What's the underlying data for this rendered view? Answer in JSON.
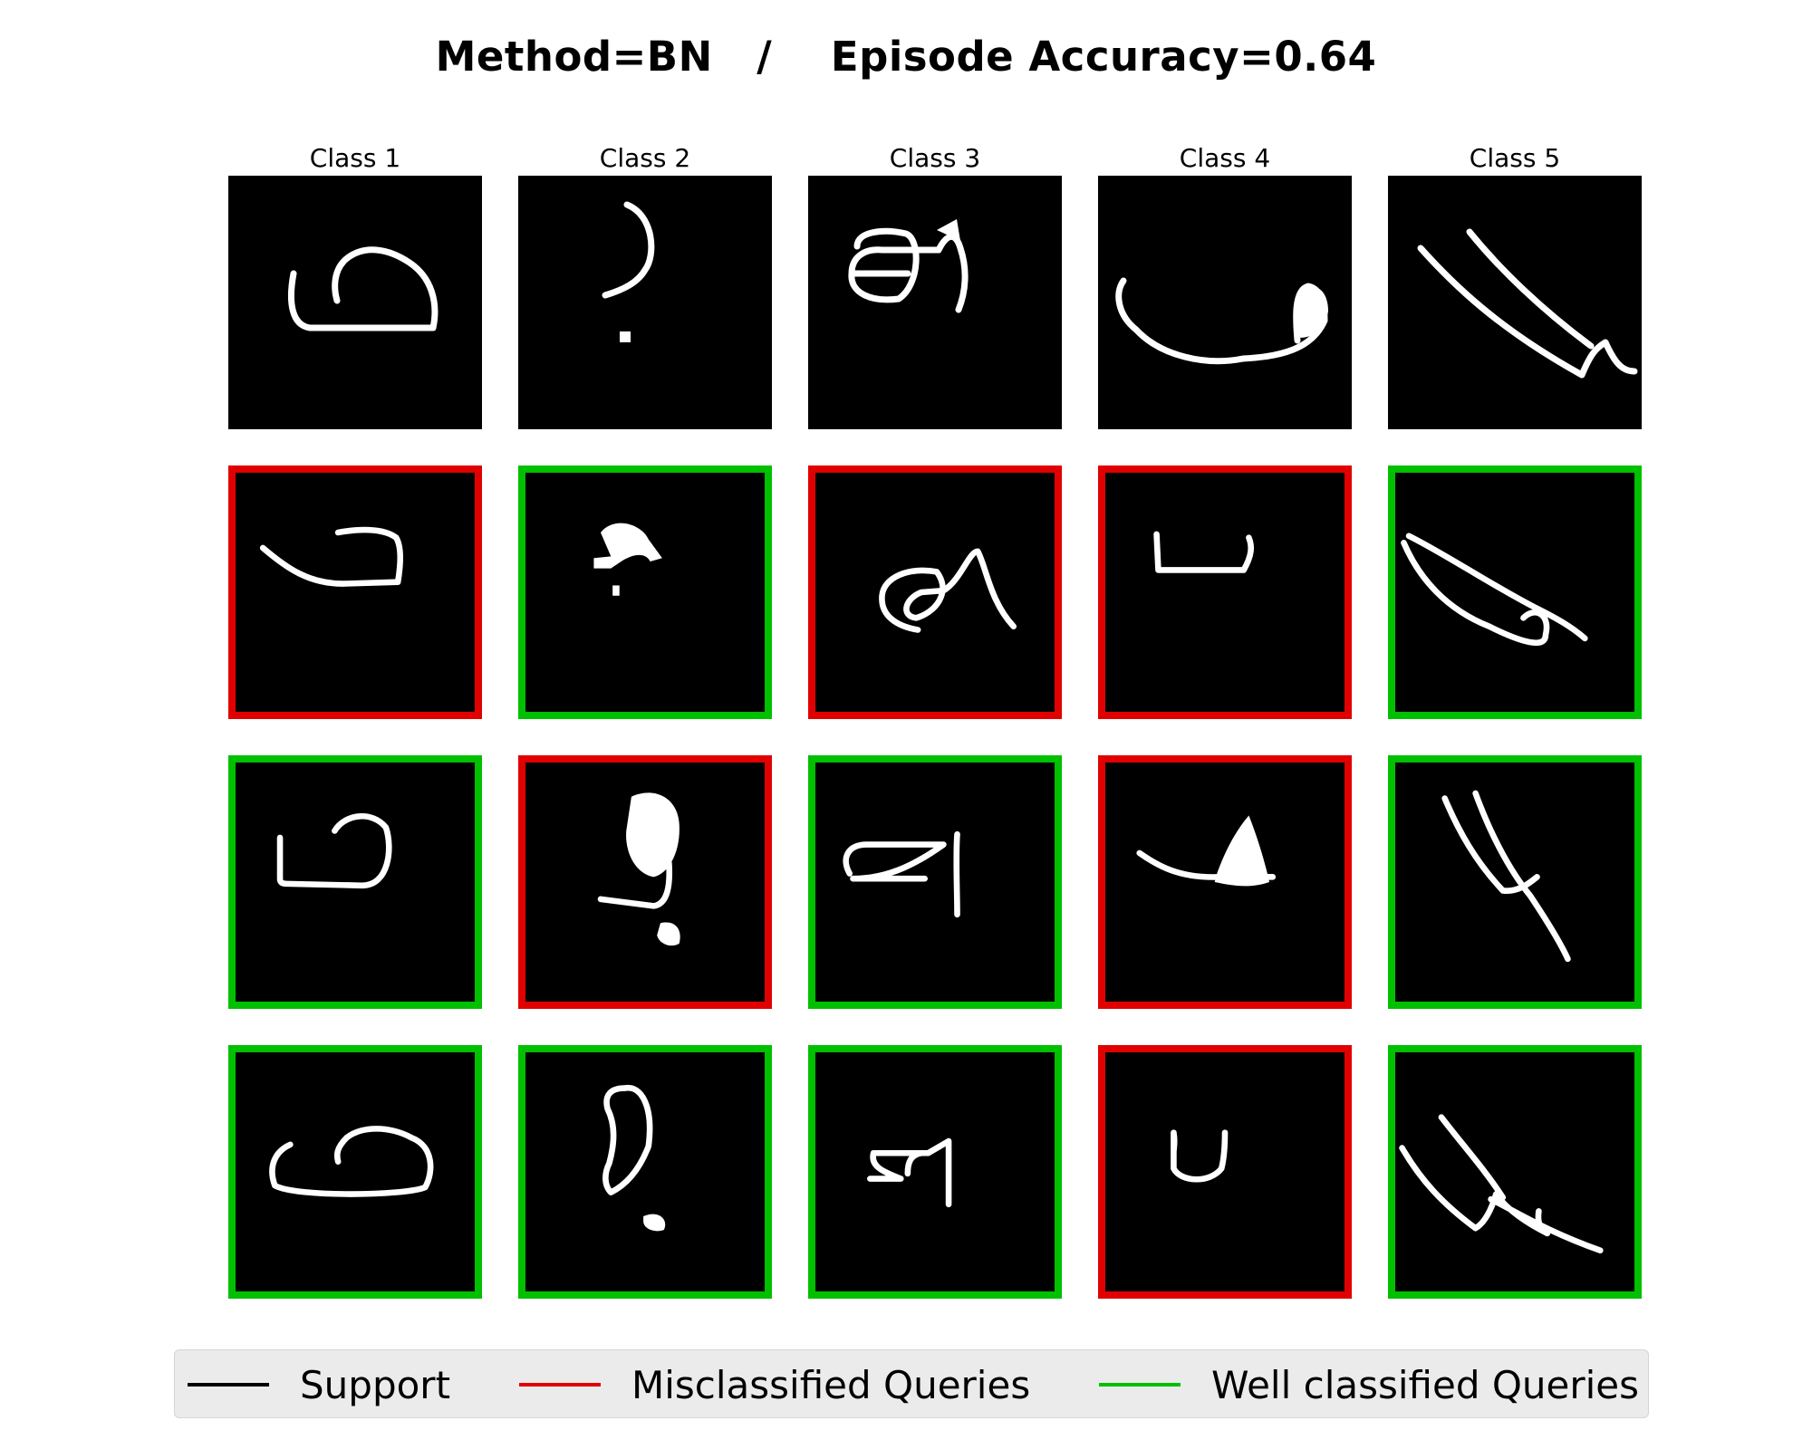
{
  "chart_data": {
    "type": "image-grid",
    "title": "Method=BN   /    Episode Accuracy=0.64",
    "classes": [
      "Class 1",
      "Class 2",
      "Class 3",
      "Class 4",
      "Class 5"
    ],
    "rows": [
      [
        "support",
        "support",
        "support",
        "support",
        "support"
      ],
      [
        "misclassified",
        "well",
        "misclassified",
        "misclassified",
        "well"
      ],
      [
        "well",
        "misclassified",
        "well",
        "misclassified",
        "well"
      ],
      [
        "well",
        "well",
        "well",
        "misclassified",
        "well"
      ]
    ],
    "legend": {
      "placement": "bottom",
      "items": [
        {
          "label": "Support",
          "color": "#000000"
        },
        {
          "label": "Misclassified Queries",
          "color": "#e00000"
        },
        {
          "label": "Well classified Queries",
          "color": "#00c000"
        }
      ]
    }
  }
}
